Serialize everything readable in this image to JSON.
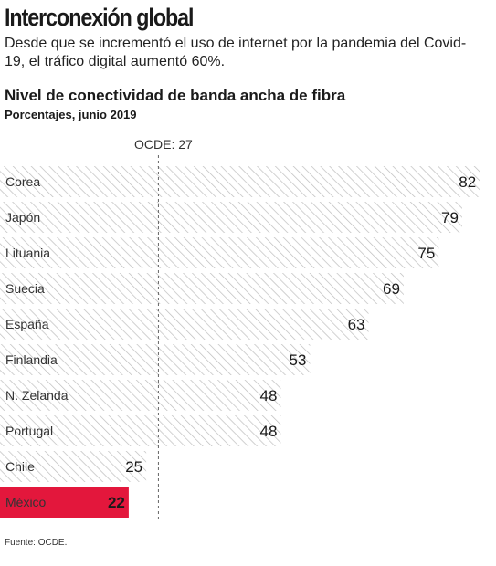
{
  "headline": "Interconexión global",
  "deck": "Desde que se incrementó el uso de internet por la pandemia del Covid-19, el tráfico digital aumentó 60%.",
  "source": "Fuente: OCDE.",
  "colors": {
    "bar_hatch": "#bdbdbd",
    "highlight": "#e3173c",
    "text": "#1a1a1a"
  },
  "chart_data": {
    "type": "bar",
    "orientation": "horizontal",
    "title": "Nivel de conectividad de banda ancha de fibra",
    "subtitle": "Porcentajes, junio 2019",
    "categories": [
      "Corea",
      "Japón",
      "Lituania",
      "Suecia",
      "España",
      "Finlandia",
      "N. Zelanda",
      "Portugal",
      "Chile",
      "México"
    ],
    "values": [
      82,
      79,
      75,
      69,
      63,
      53,
      48,
      48,
      25,
      22
    ],
    "highlight": "México",
    "reference_line": {
      "label": "OCDE: 27",
      "value": 27
    },
    "xlim": [
      0,
      84
    ]
  }
}
